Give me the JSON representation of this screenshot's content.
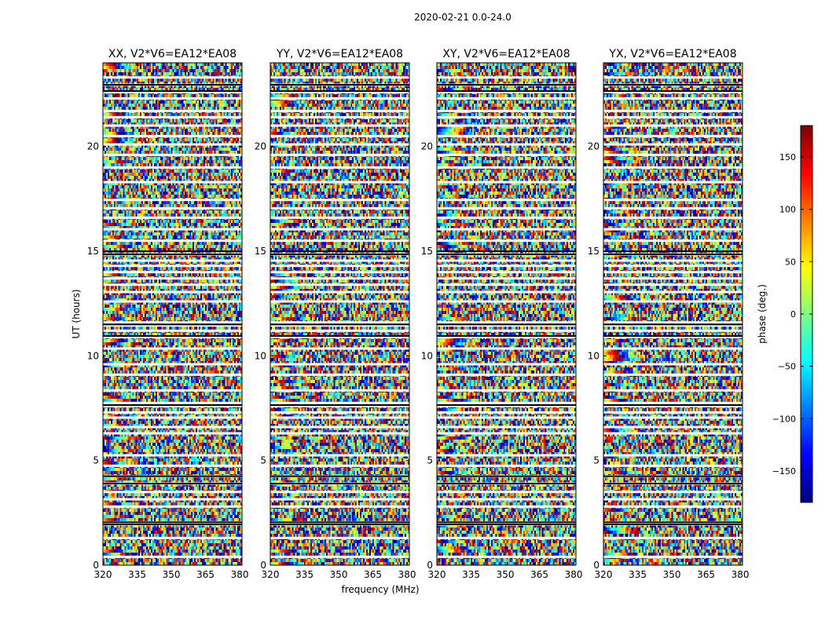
{
  "figure_title": "2020-02-21 0.0-24.0",
  "chart_data": {
    "type": "heatmap",
    "title": "2020-02-21 0.0-24.0",
    "xlabel": "frequency (MHz)",
    "ylabel": "UT (hours)",
    "xlim": [
      320,
      381
    ],
    "ylim": [
      0,
      24
    ],
    "x_ticks": [
      320,
      335,
      350,
      365,
      380
    ],
    "y_ticks": [
      0,
      5,
      10,
      15,
      20
    ],
    "colorbar": {
      "label": "phase (deg.)",
      "range": [
        -180,
        180
      ],
      "ticks": [
        -150,
        -100,
        -50,
        0,
        50,
        100,
        150
      ],
      "tick_labels": [
        "−150",
        "−100",
        "−50",
        "0",
        "50",
        "100",
        "150"
      ],
      "colormap": [
        "#00007f",
        "#0000ff",
        "#007fff",
        "#00ffff",
        "#7fff7f",
        "#ffff00",
        "#ff7f00",
        "#ff0000",
        "#7f0000"
      ]
    },
    "panels": [
      {
        "title": "XX, V2*V6=EA12*EA08",
        "pol": "XX"
      },
      {
        "title": "YY, V2*V6=EA12*EA08",
        "pol": "YY"
      },
      {
        "title": "XY, V2*V6=EA12*EA08",
        "pol": "XY"
      },
      {
        "title": "YX, V2*V6=EA12*EA08",
        "pol": "YX"
      }
    ],
    "white_gap_hours": [
      0.4,
      1.3,
      1.95,
      2.05,
      2.8,
      3.15,
      3.5,
      3.9,
      4.25,
      4.75,
      5.25,
      6.3,
      6.6,
      7.05,
      7.3,
      7.6,
      7.75,
      8.35,
      9.1,
      9.6,
      10.35,
      10.9,
      11.2,
      11.45,
      11.6,
      12.6,
      13.05,
      13.4,
      13.7,
      14.0,
      14.3,
      14.55,
      14.85,
      15.5,
      16.05,
      16.6,
      17.05,
      17.45,
      18.3,
      19.0,
      19.6,
      20.1,
      20.5,
      21.0,
      21.4,
      21.7,
      22.3,
      22.6,
      22.95,
      23.3
    ],
    "black_gap_hours": [
      1.95,
      2.05,
      3.9,
      4.25,
      7.65,
      10.95,
      11.5,
      14.85,
      15.0,
      22.65,
      22.95
    ]
  }
}
